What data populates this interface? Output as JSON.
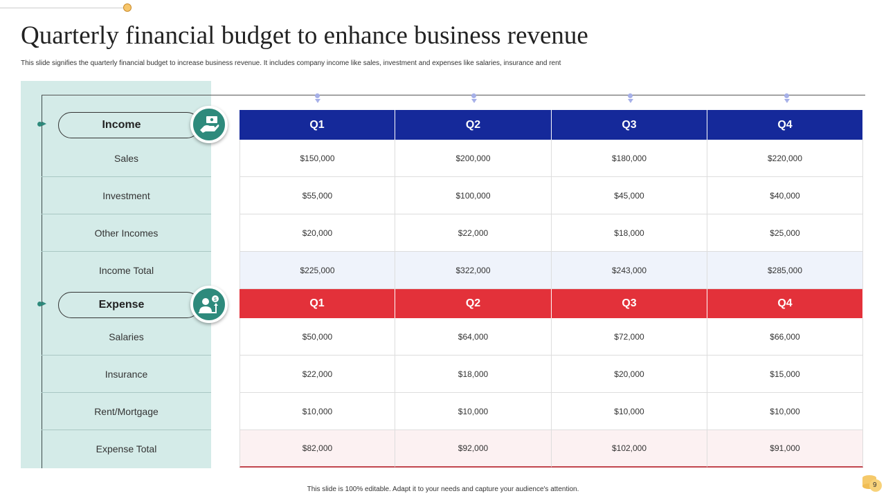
{
  "title": "Quarterly financial budget to enhance business revenue",
  "subtitle": "This slide signifies the quarterly financial budget to increase business revenue. It includes company income like sales, investment and expenses like salaries, insurance and rent",
  "colors": {
    "income_header": "#15299a",
    "expense_header": "#e3313a",
    "panel": "#d4ebe8",
    "icon_circle": "#2e8a7c",
    "income_total_bg": "#eff3fb",
    "expense_total_bg": "#fcf1f2"
  },
  "income": {
    "label": "Income",
    "icon": "hand-money-icon",
    "quarters": [
      "Q1",
      "Q2",
      "Q3",
      "Q4"
    ],
    "rows": [
      {
        "label": "Sales",
        "values": [
          "$150,000",
          "$200,000",
          "$180,000",
          "$220,000"
        ]
      },
      {
        "label": "Investment",
        "values": [
          "$55,000",
          "$100,000",
          "$45,000",
          "$40,000"
        ]
      },
      {
        "label": "Other Incomes",
        "values": [
          "$20,000",
          "$22,000",
          "$18,000",
          "$25,000"
        ]
      },
      {
        "label": "Income Total",
        "values": [
          "$225,000",
          "$322,000",
          "$243,000",
          "$285,000"
        ]
      }
    ]
  },
  "expense": {
    "label": "Expense",
    "icon": "person-money-bag-icon",
    "quarters": [
      "Q1",
      "Q2",
      "Q3",
      "Q4"
    ],
    "rows": [
      {
        "label": "Salaries",
        "values": [
          "$50,000",
          "$64,000",
          "$72,000",
          "$66,000"
        ]
      },
      {
        "label": "Insurance",
        "values": [
          "$22,000",
          "$18,000",
          "$20,000",
          "$15,000"
        ]
      },
      {
        "label": "Rent/Mortgage",
        "values": [
          "$10,000",
          "$10,000",
          "$10,000",
          "$10,000"
        ]
      },
      {
        "label": "Expense Total",
        "values": [
          "$82,000",
          "$92,000",
          "$102,000",
          "$91,000"
        ]
      }
    ]
  },
  "footer": "This slide is 100% editable.  Adapt it to your needs and capture your audience's attention.",
  "page_number": "9"
}
